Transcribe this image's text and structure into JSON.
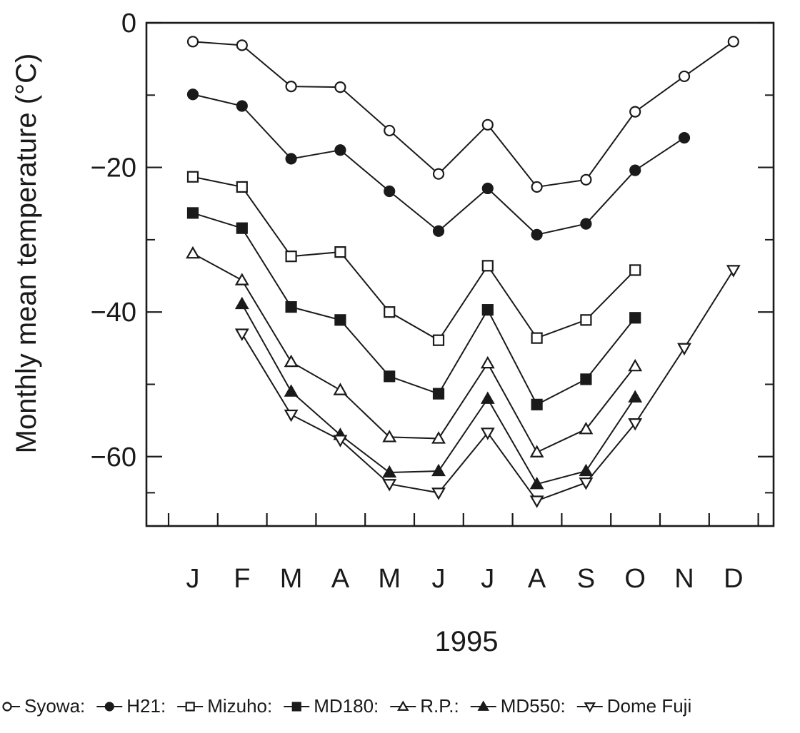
{
  "chart_data": {
    "type": "line",
    "ylabel": "Monthly mean temperature (°C)",
    "xlabel": "1995",
    "ylim": [
      -69.6,
      0
    ],
    "yticks": [
      0,
      -20,
      -40,
      -60
    ],
    "yticks_minor": [
      -10,
      -30,
      -50,
      -65
    ],
    "grid": false,
    "legend_position": "bottom",
    "categories": [
      "J",
      "F",
      "M",
      "A",
      "M",
      "J",
      "J",
      "A",
      "S",
      "O",
      "N",
      "D"
    ],
    "series": [
      {
        "name": "Syowa",
        "marker": "open-circle",
        "values": [
          -2.6,
          -3.1,
          -8.8,
          -8.9,
          -14.9,
          -20.9,
          -14.1,
          -22.7,
          -21.7,
          -12.3,
          -7.4,
          -2.6
        ]
      },
      {
        "name": "H21",
        "marker": "filled-circle",
        "values": [
          -9.9,
          -11.5,
          -18.8,
          -17.6,
          -23.3,
          -28.8,
          -22.9,
          -29.3,
          -27.8,
          -20.4,
          -15.9,
          null
        ]
      },
      {
        "name": "Mizuho",
        "marker": "open-square",
        "values": [
          -21.3,
          -22.7,
          -32.3,
          -31.7,
          -40.0,
          -43.9,
          -33.6,
          -43.6,
          -41.1,
          -34.2,
          null,
          null
        ]
      },
      {
        "name": "MD180",
        "marker": "filled-square",
        "values": [
          -26.3,
          -28.4,
          -39.3,
          -41.1,
          -48.9,
          -51.3,
          -39.7,
          -52.8,
          -49.3,
          -40.8,
          null,
          null
        ]
      },
      {
        "name": "R.P.",
        "marker": "open-triangle-up",
        "values": [
          -31.9,
          -35.6,
          -46.9,
          -50.8,
          -57.3,
          -57.5,
          -47.1,
          -59.4,
          -56.2,
          -47.5,
          null,
          null
        ]
      },
      {
        "name": "MD550",
        "marker": "filled-triangle-up",
        "values": [
          null,
          -38.9,
          -51.0,
          -57.0,
          -62.2,
          -62.0,
          -52.0,
          -63.8,
          -62.0,
          -51.8,
          null,
          null
        ]
      },
      {
        "name": "Dome Fuji",
        "marker": "open-triangle-down",
        "values": [
          null,
          -43.0,
          -54.2,
          -57.7,
          -63.8,
          -65.0,
          -56.7,
          -66.1,
          -63.6,
          -55.4,
          -45.0,
          -34.2
        ]
      }
    ]
  },
  "legend": {
    "items": [
      {
        "label": "Syowa:",
        "marker": "open-circle"
      },
      {
        "label": "H21:",
        "marker": "filled-circle"
      },
      {
        "label": "Mizuho:",
        "marker": "open-square"
      },
      {
        "label": "MD180:",
        "marker": "filled-square"
      },
      {
        "label": "R.P.:",
        "marker": "open-triangle-up"
      },
      {
        "label": "MD550:",
        "marker": "filled-triangle-up"
      },
      {
        "label": "Dome Fuji",
        "marker": "open-triangle-down"
      }
    ]
  }
}
